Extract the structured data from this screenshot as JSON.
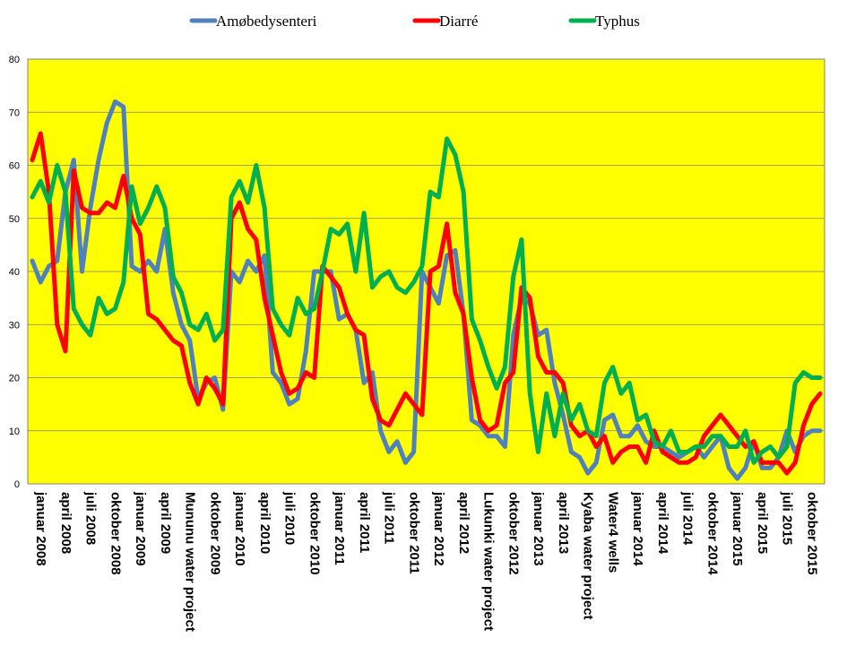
{
  "chart_data": {
    "type": "line",
    "title": "",
    "xlabel": "",
    "ylabel": "",
    "ylim": [
      0,
      80
    ],
    "yticks": [
      0,
      10,
      20,
      30,
      40,
      50,
      60,
      70,
      80
    ],
    "grid": "horizontal",
    "legend_position": "top",
    "plot_background": "#ffff00",
    "x_count": 96,
    "x_tick_labels": [
      {
        "i": 0,
        "label": "januar 2008"
      },
      {
        "i": 3,
        "label": "april 2008"
      },
      {
        "i": 6,
        "label": "juli 2008"
      },
      {
        "i": 9,
        "label": "oktober 2008"
      },
      {
        "i": 12,
        "label": "januar 2009"
      },
      {
        "i": 15,
        "label": "april 2009"
      },
      {
        "i": 18,
        "label": "Mununu water project"
      },
      {
        "i": 21,
        "label": "oktober 2009"
      },
      {
        "i": 24,
        "label": "januar 2010"
      },
      {
        "i": 27,
        "label": "april 2010"
      },
      {
        "i": 30,
        "label": "juli 2010"
      },
      {
        "i": 33,
        "label": "oktober 2010"
      },
      {
        "i": 36,
        "label": "januar 2011"
      },
      {
        "i": 39,
        "label": "april 2011"
      },
      {
        "i": 42,
        "label": "juli 2011"
      },
      {
        "i": 45,
        "label": "oktober 2011"
      },
      {
        "i": 48,
        "label": "januar 2012"
      },
      {
        "i": 51,
        "label": "april 2012"
      },
      {
        "i": 54,
        "label": "Lukunki water project"
      },
      {
        "i": 57,
        "label": "oktober 2012"
      },
      {
        "i": 60,
        "label": "januar 2013"
      },
      {
        "i": 63,
        "label": "april 2013"
      },
      {
        "i": 66,
        "label": "Kyaba water project"
      },
      {
        "i": 69,
        "label": "Water4 wells"
      },
      {
        "i": 72,
        "label": "januar 2014"
      },
      {
        "i": 75,
        "label": "april 2014"
      },
      {
        "i": 78,
        "label": "juli 2014"
      },
      {
        "i": 81,
        "label": "oktober 2014"
      },
      {
        "i": 84,
        "label": "januar 2015"
      },
      {
        "i": 87,
        "label": "april 2015"
      },
      {
        "i": 90,
        "label": "juli 2015"
      },
      {
        "i": 93,
        "label": "oktober 2015"
      }
    ],
    "series": [
      {
        "name": "Amøbedysenteri",
        "color": "#4f81bd",
        "values": [
          42,
          38,
          41,
          42,
          55,
          61,
          40,
          52,
          61,
          68,
          72,
          71,
          41,
          40,
          42,
          40,
          48,
          36,
          30,
          27,
          16,
          19,
          20,
          14,
          40,
          38,
          42,
          40,
          43,
          21,
          19,
          15,
          16,
          25,
          40,
          40,
          40,
          31,
          32,
          29,
          19,
          21,
          10,
          6,
          8,
          4,
          6,
          40,
          37,
          34,
          43,
          44,
          32,
          12,
          11,
          9,
          9,
          7,
          28,
          35,
          34,
          28,
          29,
          19,
          13,
          6,
          5,
          2,
          4,
          12,
          13,
          9,
          9,
          11,
          8,
          7,
          7,
          6,
          5,
          6,
          7,
          5,
          7,
          9,
          3,
          1,
          3,
          8,
          3,
          3,
          5,
          10,
          6,
          9,
          10,
          10
        ]
      },
      {
        "name": "Diarré",
        "color": "#ff0000",
        "values": [
          61,
          66,
          55,
          30,
          25,
          59,
          52,
          51,
          51,
          53,
          52,
          58,
          50,
          47,
          32,
          31,
          29,
          27,
          26,
          19,
          15,
          20,
          18,
          15,
          50,
          53,
          48,
          46,
          35,
          28,
          21,
          17,
          18,
          21,
          20,
          41,
          39,
          37,
          32,
          29,
          28,
          16,
          12,
          11,
          14,
          17,
          15,
          13,
          40,
          41,
          49,
          36,
          32,
          20,
          12,
          10,
          11,
          19,
          21,
          37,
          35,
          24,
          21,
          21,
          19,
          11,
          9,
          10,
          7,
          9,
          4,
          6,
          7,
          7,
          4,
          10,
          6,
          5,
          4,
          4,
          5,
          9,
          11,
          13,
          11,
          9,
          7,
          8,
          4,
          4,
          4,
          2,
          4,
          11,
          15,
          17
        ]
      },
      {
        "name": "Typhus",
        "color": "#00b050",
        "values": [
          54,
          57,
          53,
          60,
          55,
          33,
          30,
          28,
          35,
          32,
          33,
          38,
          56,
          49,
          52,
          56,
          52,
          39,
          36,
          30,
          29,
          32,
          27,
          29,
          54,
          57,
          53,
          60,
          52,
          33,
          30,
          28,
          35,
          32,
          33,
          40,
          48,
          47,
          49,
          40,
          51,
          37,
          39,
          40,
          37,
          36,
          38,
          41,
          55,
          54,
          65,
          62,
          55,
          31,
          27,
          22,
          18,
          22,
          39,
          46,
          17,
          6,
          17,
          9,
          17,
          12,
          15,
          10,
          9,
          19,
          22,
          17,
          19,
          12,
          13,
          8,
          7,
          10,
          6,
          6,
          7,
          7,
          9,
          9,
          7,
          7,
          10,
          4,
          6,
          7,
          5,
          7,
          19,
          21,
          20,
          20
        ]
      }
    ]
  }
}
